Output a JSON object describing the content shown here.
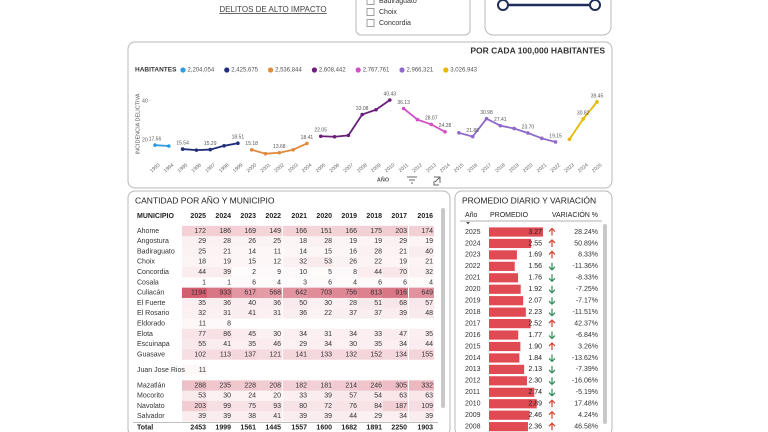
{
  "header": {
    "link": "DELITOS DE ALTO IMPACTO"
  },
  "slicer": {
    "items": [
      "Badiraguato",
      "Choix",
      "Concordia"
    ]
  },
  "chart_data": {
    "type": "line",
    "title": "POR CADA 100,000 HABITANTES",
    "legend_title": "HABITANTES",
    "ylabel": "INCIDENCIA DELICTIVA",
    "xlabel": "AÑO",
    "x": [
      1993,
      1994,
      1995,
      1996,
      1997,
      1998,
      1999,
      2000,
      2001,
      2002,
      2003,
      2004,
      2005,
      2006,
      2007,
      2008,
      2009,
      2010,
      2011,
      2012,
      2013,
      2014,
      2015,
      2016,
      2017,
      2018,
      2019,
      2020,
      2021,
      2022,
      2023,
      2024,
      2025
    ],
    "xlim": [
      1993,
      2025
    ],
    "ylim": [
      10,
      44
    ],
    "yticks": [
      20,
      40
    ],
    "grid": false,
    "series": [
      {
        "name": "2,204,054",
        "color": "#2e9be0",
        "values": [
          17.56,
          17.1,
          null,
          null,
          null,
          null,
          null,
          null,
          null,
          null,
          null,
          null,
          null,
          null,
          null,
          null,
          null,
          null,
          null,
          null,
          null,
          null,
          null,
          null,
          null,
          null,
          null,
          null,
          null,
          null,
          null,
          null,
          null
        ],
        "value_labels": [
          "17.56",
          null,
          null,
          null,
          null,
          null,
          null,
          null,
          null,
          null,
          null,
          null,
          null,
          null,
          null,
          null,
          null,
          null,
          null,
          null,
          null,
          null,
          null,
          null,
          null,
          null,
          null,
          null,
          null,
          null,
          null,
          null,
          null
        ]
      },
      {
        "name": "2,425,675",
        "color": "#1f2d7a",
        "values": [
          null,
          null,
          15.54,
          15.0,
          15.29,
          17.2,
          18.51,
          null,
          null,
          null,
          null,
          null,
          null,
          null,
          null,
          null,
          null,
          null,
          null,
          null,
          null,
          null,
          null,
          null,
          null,
          null,
          null,
          null,
          null,
          null,
          null,
          null,
          null
        ],
        "value_labels": [
          null,
          null,
          "15.54",
          null,
          "15.29",
          null,
          "18.51",
          null,
          null,
          null,
          null,
          null,
          null,
          null,
          null,
          null,
          null,
          null,
          null,
          null,
          null,
          null,
          null,
          null,
          null,
          null,
          null,
          null,
          null,
          null,
          null,
          null,
          null
        ]
      },
      {
        "name": "2,536,844",
        "color": "#e08a3c",
        "values": [
          null,
          null,
          null,
          null,
          null,
          null,
          null,
          15.18,
          13.2,
          13.68,
          15.2,
          18.41,
          null,
          null,
          null,
          null,
          null,
          null,
          null,
          null,
          null,
          null,
          null,
          null,
          null,
          null,
          null,
          null,
          null,
          null,
          null,
          null,
          null
        ],
        "value_labels": [
          null,
          null,
          null,
          null,
          null,
          null,
          null,
          "15.18",
          null,
          "13.68",
          null,
          "18.41",
          null,
          null,
          null,
          null,
          null,
          null,
          null,
          null,
          null,
          null,
          null,
          null,
          null,
          null,
          null,
          null,
          null,
          null,
          null,
          null,
          null
        ]
      },
      {
        "name": "2,608,442",
        "color": "#6b1f7a",
        "values": [
          null,
          null,
          null,
          null,
          null,
          null,
          null,
          null,
          null,
          null,
          null,
          null,
          22.05,
          21.8,
          22.5,
          33.08,
          35.5,
          40.43,
          null,
          null,
          null,
          null,
          null,
          null,
          null,
          null,
          null,
          null,
          null,
          null,
          null,
          null,
          null
        ],
        "value_labels": [
          null,
          null,
          null,
          null,
          null,
          null,
          null,
          null,
          null,
          null,
          null,
          null,
          "22.05",
          null,
          null,
          "33.08",
          null,
          "40.43",
          null,
          null,
          null,
          null,
          null,
          null,
          null,
          null,
          null,
          null,
          null,
          null,
          null,
          null,
          null
        ]
      },
      {
        "name": "2,767,761",
        "color": "#d34fc4",
        "values": [
          null,
          null,
          null,
          null,
          null,
          null,
          null,
          null,
          null,
          null,
          null,
          null,
          null,
          null,
          null,
          null,
          null,
          null,
          36.13,
          30.5,
          28.07,
          24.28,
          null,
          null,
          null,
          null,
          null,
          null,
          null,
          null,
          null,
          null,
          null
        ],
        "value_labels": [
          null,
          null,
          null,
          null,
          null,
          null,
          null,
          null,
          null,
          null,
          null,
          null,
          null,
          null,
          null,
          null,
          null,
          null,
          "36.13",
          null,
          "28.07",
          "24.28",
          null,
          null,
          null,
          null,
          null,
          null,
          null,
          null,
          null,
          null,
          null
        ]
      },
      {
        "name": "2,966,321",
        "color": "#8e69c9",
        "values": [
          null,
          null,
          null,
          null,
          null,
          null,
          null,
          null,
          null,
          null,
          null,
          null,
          null,
          null,
          null,
          null,
          null,
          null,
          null,
          null,
          null,
          null,
          23.8,
          21.86,
          30.98,
          27.41,
          26.0,
          23.7,
          21.0,
          19.15,
          null,
          null,
          null
        ],
        "value_labels": [
          null,
          null,
          null,
          null,
          null,
          null,
          null,
          null,
          null,
          null,
          null,
          null,
          null,
          null,
          null,
          null,
          null,
          null,
          null,
          null,
          null,
          null,
          null,
          "21.86",
          "30.98",
          "27.41",
          null,
          "23.70",
          null,
          "19.15",
          null,
          null,
          null
        ]
      },
      {
        "name": "3,026,943",
        "color": "#e6b800",
        "values": [
          null,
          null,
          null,
          null,
          null,
          null,
          null,
          null,
          null,
          null,
          null,
          null,
          null,
          null,
          null,
          null,
          null,
          null,
          null,
          null,
          null,
          null,
          null,
          null,
          null,
          null,
          null,
          null,
          null,
          null,
          20.5,
          30.82,
          39.45
        ],
        "value_labels": [
          null,
          null,
          null,
          null,
          null,
          null,
          null,
          null,
          null,
          null,
          null,
          null,
          null,
          null,
          null,
          null,
          null,
          null,
          null,
          null,
          null,
          null,
          null,
          null,
          null,
          null,
          null,
          null,
          null,
          null,
          null,
          "30.82",
          "39.45"
        ]
      }
    ]
  },
  "municipal_table": {
    "title": "CANTIDAD POR AÑO Y MUNICIPIO",
    "columns": [
      "MUNICIPIO",
      "2025",
      "2024",
      "2023",
      "2022",
      "2021",
      "2020",
      "2019",
      "2018",
      "2017",
      "2016"
    ],
    "rows": [
      {
        "name": "Ahome",
        "values": [
          172,
          186,
          169,
          149,
          166,
          151,
          166,
          175,
          203,
          174
        ]
      },
      {
        "name": "Angostura",
        "values": [
          29,
          28,
          26,
          25,
          18,
          28,
          19,
          19,
          29,
          19
        ]
      },
      {
        "name": "Badiraguato",
        "values": [
          25,
          21,
          14,
          11,
          14,
          15,
          16,
          28,
          21,
          40
        ]
      },
      {
        "name": "Choix",
        "values": [
          18,
          19,
          15,
          12,
          32,
          53,
          26,
          22,
          19,
          21
        ]
      },
      {
        "name": "Concordia",
        "values": [
          44,
          39,
          2,
          9,
          10,
          5,
          8,
          44,
          70,
          32
        ]
      },
      {
        "name": "Cosala",
        "values": [
          1,
          1,
          6,
          4,
          3,
          6,
          4,
          6,
          6,
          4
        ]
      },
      {
        "name": "Culiacán",
        "values": [
          1194,
          933,
          617,
          568,
          642,
          703,
          756,
          813,
          916,
          649
        ]
      },
      {
        "name": "El Fuerte",
        "values": [
          35,
          36,
          40,
          36,
          50,
          30,
          28,
          51,
          68,
          57
        ]
      },
      {
        "name": "El Rosario",
        "values": [
          32,
          31,
          41,
          31,
          36,
          22,
          37,
          37,
          39,
          48
        ]
      },
      {
        "name": "Eldorado",
        "values": [
          11,
          8,
          null,
          null,
          null,
          null,
          null,
          null,
          null,
          null
        ]
      },
      {
        "name": "Elota",
        "values": [
          77,
          86,
          45,
          30,
          34,
          31,
          34,
          33,
          47,
          35
        ]
      },
      {
        "name": "Escuinapa",
        "values": [
          55,
          41,
          35,
          46,
          29,
          34,
          30,
          35,
          34,
          44
        ]
      },
      {
        "name": "Guasave",
        "values": [
          102,
          113,
          137,
          121,
          141,
          133,
          132,
          152,
          134,
          155
        ]
      },
      {
        "name": "Juan Jose Rios",
        "values": [
          11,
          null,
          null,
          null,
          null,
          null,
          null,
          null,
          null,
          null
        ]
      },
      {
        "name": "Mazatlán",
        "values": [
          288,
          235,
          228,
          208,
          182,
          181,
          214,
          246,
          305,
          332
        ]
      },
      {
        "name": "Mocorito",
        "values": [
          53,
          30,
          24,
          20,
          33,
          39,
          57,
          54,
          63,
          63
        ]
      },
      {
        "name": "Navolato",
        "values": [
          203,
          99,
          75,
          93,
          80,
          72,
          76,
          84,
          187,
          109
        ]
      },
      {
        "name": "Salvador",
        "values": [
          39,
          39,
          38,
          41,
          39,
          39,
          44,
          29,
          34,
          39
        ]
      }
    ],
    "total": {
      "name": "Total",
      "values": [
        2453,
        1999,
        1561,
        1445,
        1557,
        1600,
        1682,
        1891,
        2250,
        1903
      ]
    }
  },
  "daily_table": {
    "title": "PROMEDIO DIARIO Y VARIACIÓN",
    "columns": [
      "Año",
      "PROMEDIO",
      "VARIACIÓN %"
    ],
    "rows": [
      {
        "year": "2025",
        "average": 3.27,
        "average_label": "3.27",
        "variation": "28.24%"
      },
      {
        "year": "2024",
        "average": 2.55,
        "average_label": "2.55",
        "variation": "50.89%"
      },
      {
        "year": "2023",
        "average": 1.69,
        "average_label": "1.69",
        "variation": "8.33%"
      },
      {
        "year": "2022",
        "average": 1.56,
        "average_label": "1.56",
        "variation": "-11.36%"
      },
      {
        "year": "2021",
        "average": 1.76,
        "average_label": "1.76",
        "variation": "-8.33%"
      },
      {
        "year": "2020",
        "average": 1.92,
        "average_label": "1.92",
        "variation": "-7.25%"
      },
      {
        "year": "2019",
        "average": 2.07,
        "average_label": "2.07",
        "variation": "-7.17%"
      },
      {
        "year": "2018",
        "average": 2.23,
        "average_label": "2.23",
        "variation": "-11.51%"
      },
      {
        "year": "2017",
        "average": 2.52,
        "average_label": "2.52",
        "variation": "42.37%"
      },
      {
        "year": "2016",
        "average": 1.77,
        "average_label": "1.77",
        "variation": "-6.84%"
      },
      {
        "year": "2015",
        "average": 1.9,
        "average_label": "1.90",
        "variation": "3.26%"
      },
      {
        "year": "2014",
        "average": 1.84,
        "average_label": "1.84",
        "variation": "-13.62%"
      },
      {
        "year": "2013",
        "average": 2.13,
        "average_label": "2.13",
        "variation": "-7.39%"
      },
      {
        "year": "2012",
        "average": 2.3,
        "average_label": "2.30",
        "variation": "-16.06%"
      },
      {
        "year": "2011",
        "average": 2.74,
        "average_label": "2.74",
        "variation": "-5.19%"
      },
      {
        "year": "2010",
        "average": 2.89,
        "average_label": "2.89",
        "variation": "17.48%"
      },
      {
        "year": "2009",
        "average": 2.46,
        "average_label": "2.46",
        "variation": "4.24%"
      },
      {
        "year": "2008",
        "average": 2.36,
        "average_label": "2.36",
        "variation": "46.58%"
      }
    ]
  }
}
